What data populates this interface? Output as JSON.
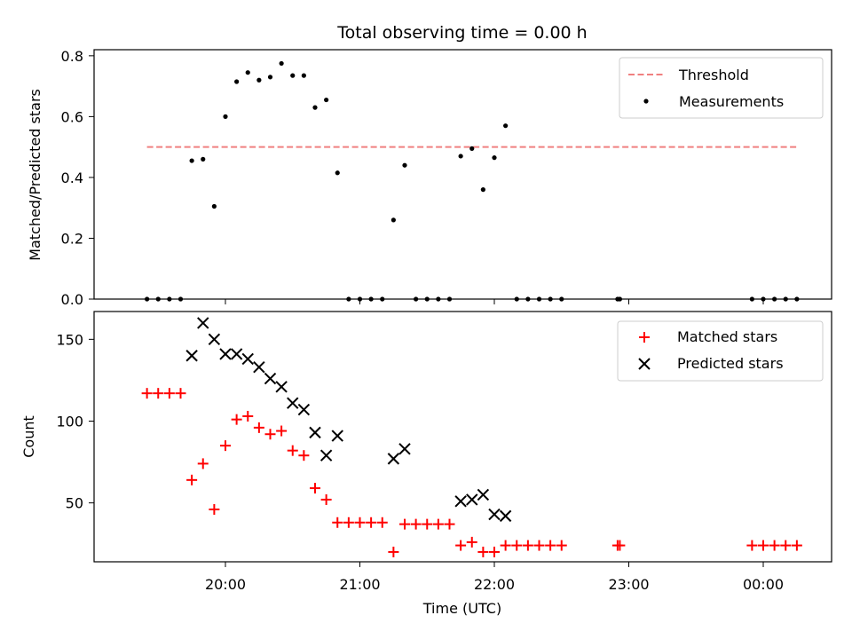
{
  "chart_data": [
    {
      "type": "scatter",
      "title": "Total observing time = 0.00 h",
      "xlabel": "",
      "ylabel": "Matched/Predicted stars",
      "ylim": [
        0,
        0.82
      ],
      "yticks": [
        "0.0",
        "0.2",
        "0.4",
        "0.6",
        "0.8"
      ],
      "ytick_values": [
        0,
        0.2,
        0.4,
        0.6,
        0.8
      ],
      "legend_position": "top-right",
      "threshold": {
        "name": "Threshold",
        "value": 0.5,
        "x_start": "19:25",
        "x_end": "00:15",
        "color": "#f08080"
      },
      "series": [
        {
          "name": "Measurements",
          "color": "#000000",
          "points": [
            {
              "x": "19:25",
              "y": 0
            },
            {
              "x": "19:30",
              "y": 0
            },
            {
              "x": "19:35",
              "y": 0
            },
            {
              "x": "19:40",
              "y": 0
            },
            {
              "x": "19:45",
              "y": 0.455
            },
            {
              "x": "19:50",
              "y": 0.46
            },
            {
              "x": "19:55",
              "y": 0.305
            },
            {
              "x": "20:00",
              "y": 0.6
            },
            {
              "x": "20:05",
              "y": 0.715
            },
            {
              "x": "20:10",
              "y": 0.745
            },
            {
              "x": "20:15",
              "y": 0.72
            },
            {
              "x": "20:20",
              "y": 0.73
            },
            {
              "x": "20:25",
              "y": 0.775
            },
            {
              "x": "20:30",
              "y": 0.735
            },
            {
              "x": "20:35",
              "y": 0.735
            },
            {
              "x": "20:40",
              "y": 0.63
            },
            {
              "x": "20:45",
              "y": 0.655
            },
            {
              "x": "20:50",
              "y": 0.415
            },
            {
              "x": "20:55",
              "y": 0
            },
            {
              "x": "21:00",
              "y": 0
            },
            {
              "x": "21:05",
              "y": 0
            },
            {
              "x": "21:10",
              "y": 0
            },
            {
              "x": "21:15",
              "y": 0.26
            },
            {
              "x": "21:20",
              "y": 0.44
            },
            {
              "x": "21:25",
              "y": 0
            },
            {
              "x": "21:30",
              "y": 0
            },
            {
              "x": "21:35",
              "y": 0
            },
            {
              "x": "21:40",
              "y": 0
            },
            {
              "x": "21:45",
              "y": 0.47
            },
            {
              "x": "21:50",
              "y": 0.495
            },
            {
              "x": "21:55",
              "y": 0.36
            },
            {
              "x": "22:00",
              "y": 0.465
            },
            {
              "x": "22:05",
              "y": 0.57
            },
            {
              "x": "22:10",
              "y": 0
            },
            {
              "x": "22:15",
              "y": 0
            },
            {
              "x": "22:20",
              "y": 0
            },
            {
              "x": "22:25",
              "y": 0
            },
            {
              "x": "22:30",
              "y": 0
            },
            {
              "x": "22:55",
              "y": 0
            },
            {
              "x": "22:56",
              "y": 0
            },
            {
              "x": "23:55",
              "y": 0
            },
            {
              "x": "00:00",
              "y": 0
            },
            {
              "x": "00:05",
              "y": 0
            },
            {
              "x": "00:10",
              "y": 0
            },
            {
              "x": "00:15",
              "y": 0
            }
          ]
        }
      ]
    },
    {
      "type": "scatter",
      "title": "",
      "xlabel": "Time (UTC)",
      "ylabel": "Count",
      "ylim": [
        14,
        167
      ],
      "yticks": [
        "50",
        "100",
        "150"
      ],
      "ytick_values": [
        50,
        100,
        150
      ],
      "xticks": [
        "20:00",
        "21:00",
        "22:00",
        "23:00",
        "00:00"
      ],
      "legend_position": "top-right",
      "series": [
        {
          "name": "Matched stars",
          "color": "#ff0000",
          "points": [
            {
              "x": "19:25",
              "y": 117
            },
            {
              "x": "19:30",
              "y": 117
            },
            {
              "x": "19:35",
              "y": 117
            },
            {
              "x": "19:40",
              "y": 117
            },
            {
              "x": "19:45",
              "y": 64
            },
            {
              "x": "19:50",
              "y": 74
            },
            {
              "x": "19:55",
              "y": 46
            },
            {
              "x": "20:00",
              "y": 85
            },
            {
              "x": "20:05",
              "y": 101
            },
            {
              "x": "20:10",
              "y": 103
            },
            {
              "x": "20:15",
              "y": 96
            },
            {
              "x": "20:20",
              "y": 92
            },
            {
              "x": "20:25",
              "y": 94
            },
            {
              "x": "20:30",
              "y": 82
            },
            {
              "x": "20:35",
              "y": 79
            },
            {
              "x": "20:40",
              "y": 59
            },
            {
              "x": "20:45",
              "y": 52
            },
            {
              "x": "20:50",
              "y": 38
            },
            {
              "x": "20:55",
              "y": 38
            },
            {
              "x": "21:00",
              "y": 38
            },
            {
              "x": "21:05",
              "y": 38
            },
            {
              "x": "21:10",
              "y": 38
            },
            {
              "x": "21:15",
              "y": 20
            },
            {
              "x": "21:20",
              "y": 37
            },
            {
              "x": "21:25",
              "y": 37
            },
            {
              "x": "21:30",
              "y": 37
            },
            {
              "x": "21:35",
              "y": 37
            },
            {
              "x": "21:40",
              "y": 37
            },
            {
              "x": "21:45",
              "y": 24
            },
            {
              "x": "21:50",
              "y": 26
            },
            {
              "x": "21:55",
              "y": 20
            },
            {
              "x": "22:00",
              "y": 20
            },
            {
              "x": "22:05",
              "y": 24
            },
            {
              "x": "22:10",
              "y": 24
            },
            {
              "x": "22:15",
              "y": 24
            },
            {
              "x": "22:20",
              "y": 24
            },
            {
              "x": "22:25",
              "y": 24
            },
            {
              "x": "22:30",
              "y": 24
            },
            {
              "x": "22:55",
              "y": 24
            },
            {
              "x": "22:56",
              "y": 24
            },
            {
              "x": "23:55",
              "y": 24
            },
            {
              "x": "00:00",
              "y": 24
            },
            {
              "x": "00:05",
              "y": 24
            },
            {
              "x": "00:10",
              "y": 24
            },
            {
              "x": "00:15",
              "y": 24
            }
          ]
        },
        {
          "name": "Predicted stars",
          "color": "#000000",
          "points": [
            {
              "x": "19:45",
              "y": 140
            },
            {
              "x": "19:50",
              "y": 160
            },
            {
              "x": "19:55",
              "y": 150
            },
            {
              "x": "20:00",
              "y": 141
            },
            {
              "x": "20:05",
              "y": 141
            },
            {
              "x": "20:10",
              "y": 138
            },
            {
              "x": "20:15",
              "y": 133
            },
            {
              "x": "20:20",
              "y": 126
            },
            {
              "x": "20:25",
              "y": 121
            },
            {
              "x": "20:30",
              "y": 111
            },
            {
              "x": "20:35",
              "y": 107
            },
            {
              "x": "20:40",
              "y": 93
            },
            {
              "x": "20:45",
              "y": 79
            },
            {
              "x": "20:50",
              "y": 91
            },
            {
              "x": "21:15",
              "y": 77
            },
            {
              "x": "21:20",
              "y": 83
            },
            {
              "x": "21:45",
              "y": 51
            },
            {
              "x": "21:50",
              "y": 52
            },
            {
              "x": "21:55",
              "y": 55
            },
            {
              "x": "22:00",
              "y": 43
            },
            {
              "x": "22:05",
              "y": 42
            }
          ]
        }
      ]
    }
  ]
}
